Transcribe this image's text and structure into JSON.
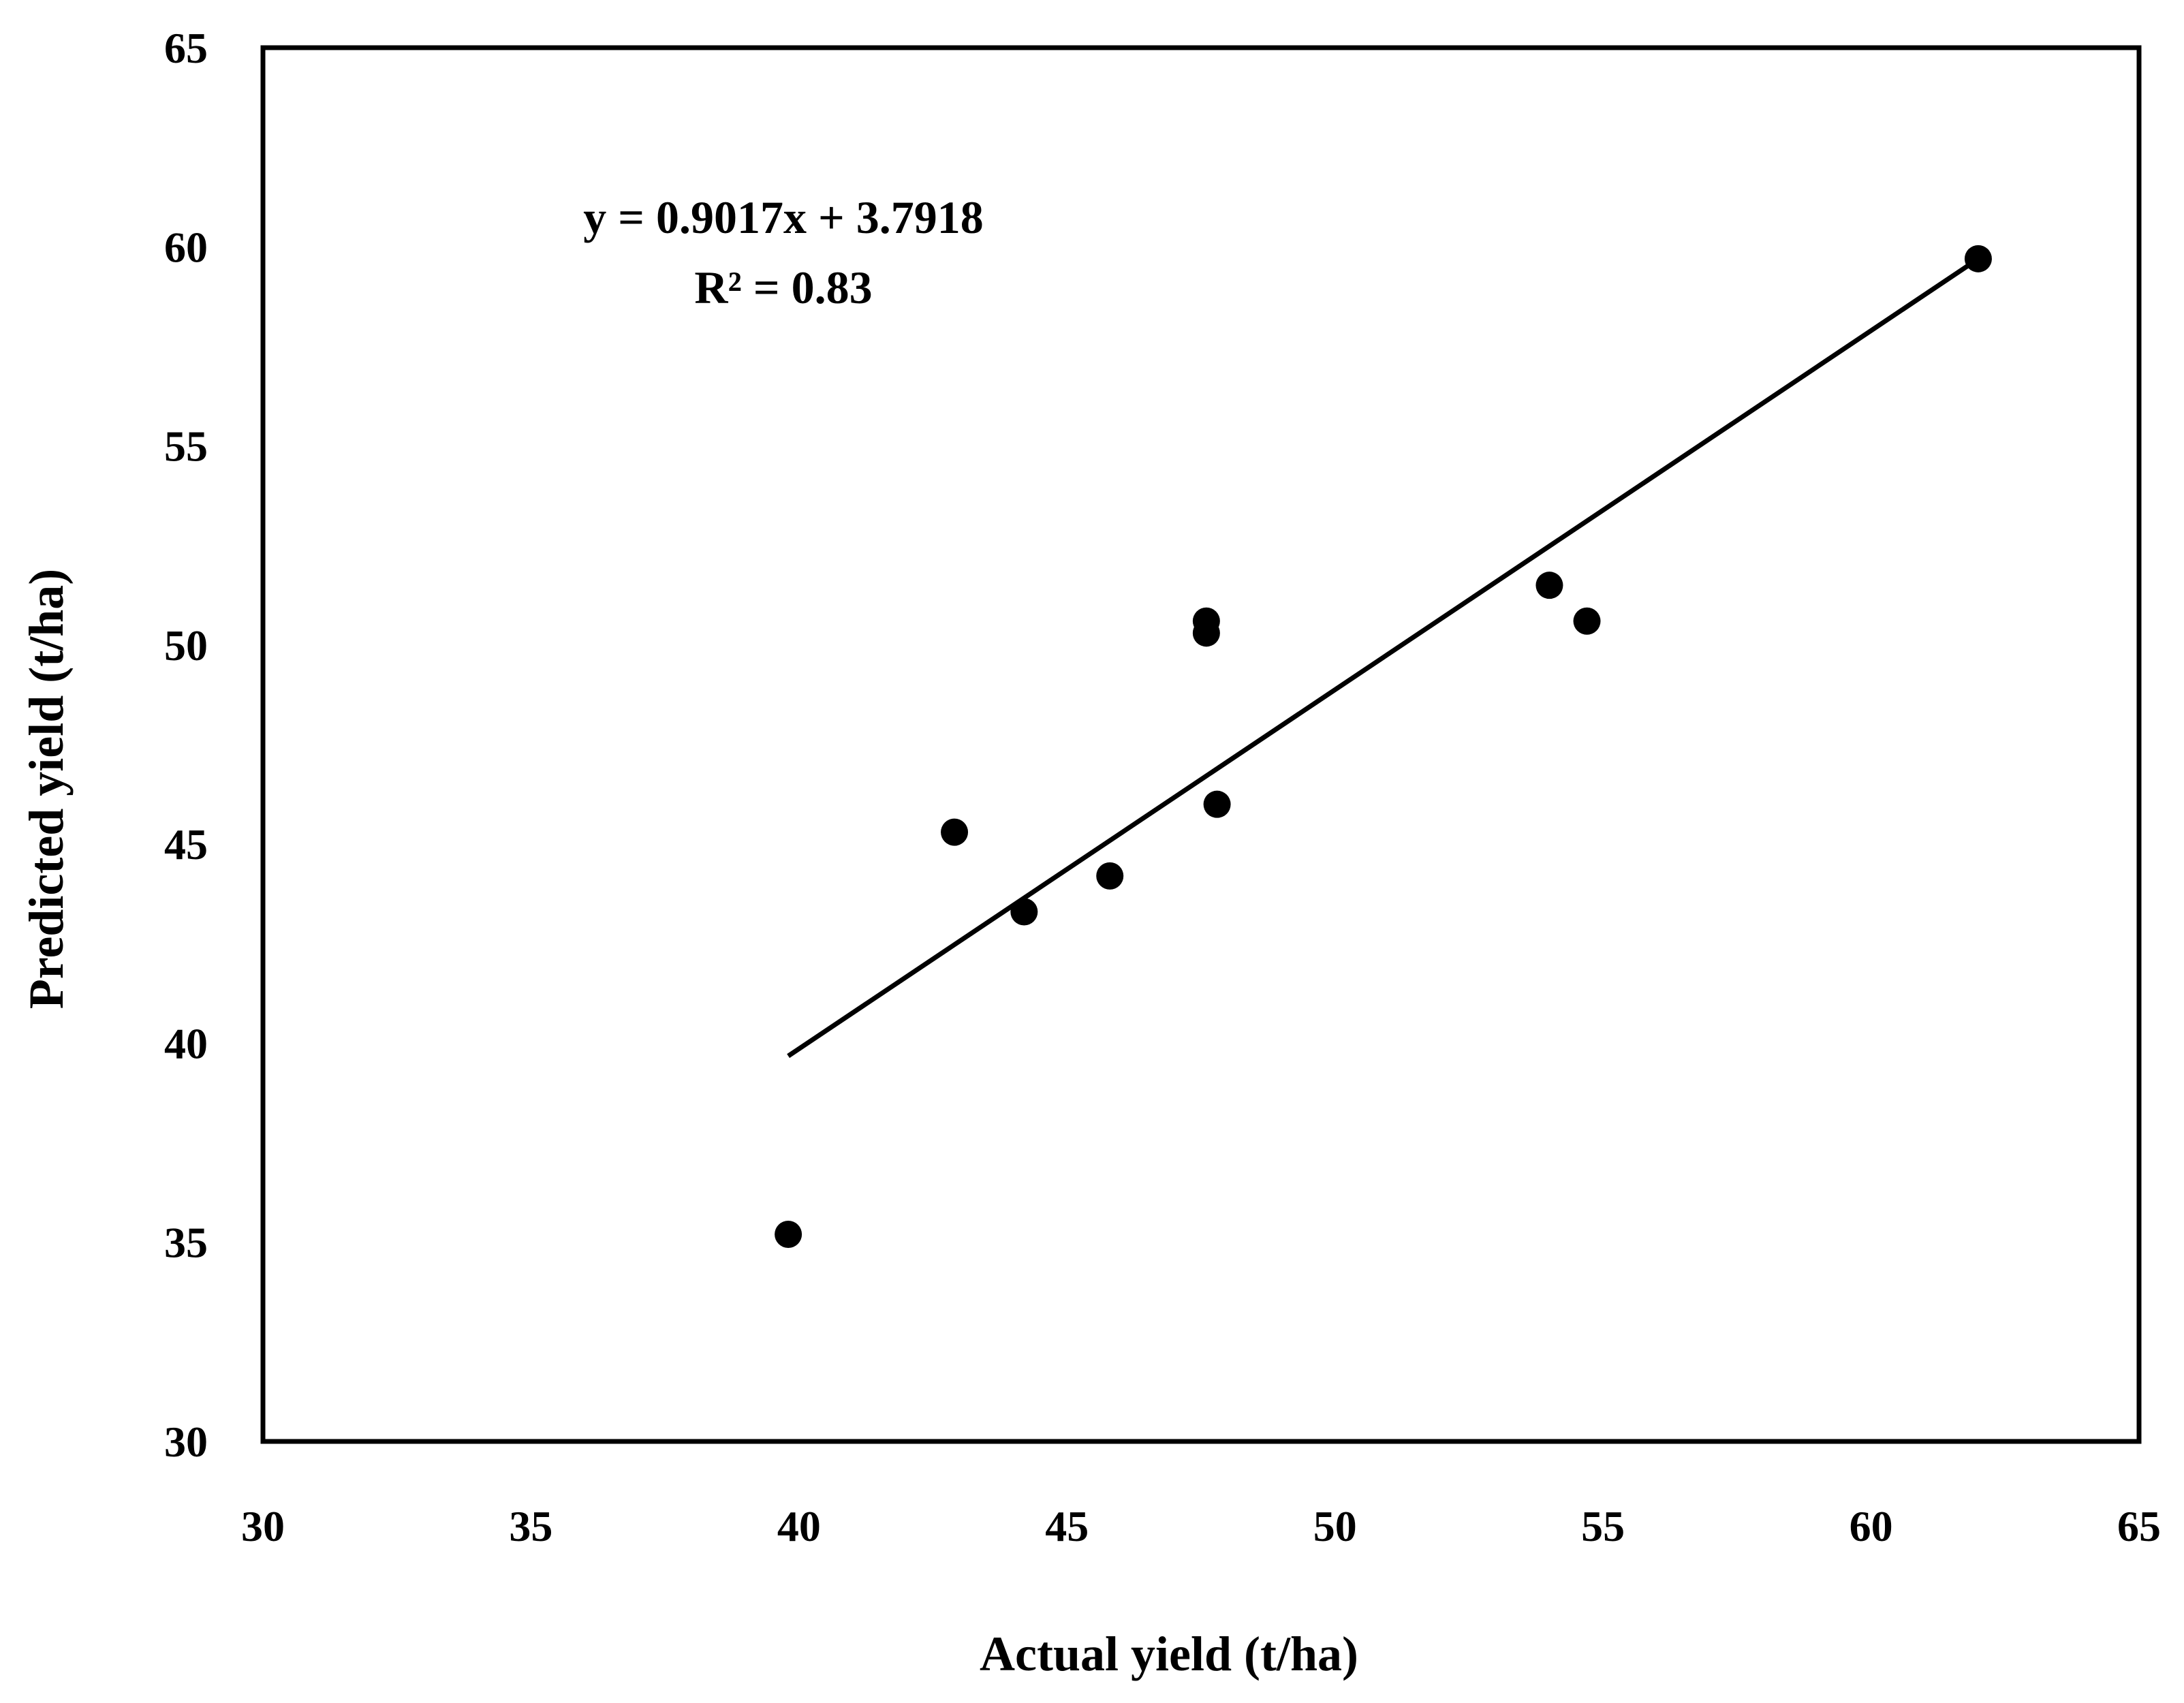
{
  "chart_data": {
    "type": "scatter",
    "xlabel": "Actual yield  (t/ha)",
    "ylabel": "Predicted yield  (t/ha)",
    "xlim": [
      30,
      65
    ],
    "ylim": [
      30,
      65
    ],
    "x_ticks": [
      "30",
      "35",
      "40",
      "45",
      "50",
      "55",
      "60",
      "65"
    ],
    "y_ticks": [
      "30",
      "35",
      "40",
      "45",
      "50",
      "55",
      "60",
      "65"
    ],
    "grid": false,
    "legend": "none",
    "series": [
      {
        "points": [
          {
            "x": 39.8,
            "y": 35.2
          },
          {
            "x": 42.9,
            "y": 45.3
          },
          {
            "x": 44.2,
            "y": 43.3
          },
          {
            "x": 45.8,
            "y": 44.2
          },
          {
            "x": 47.6,
            "y": 50.6
          },
          {
            "x": 47.6,
            "y": 50.3
          },
          {
            "x": 47.8,
            "y": 46.0
          },
          {
            "x": 54.0,
            "y": 51.5
          },
          {
            "x": 54.7,
            "y": 50.6
          },
          {
            "x": 62.0,
            "y": 59.7
          }
        ]
      }
    ],
    "trendline": {
      "slope": 0.9017,
      "intercept": 3.7918,
      "x_range": [
        39.8,
        62.0
      ]
    },
    "annotation": {
      "equation": "y = 0.9017x + 3.7918",
      "r_squared": "R² = 0.83"
    },
    "marker_color": "#000000",
    "line_color": "#000000"
  }
}
